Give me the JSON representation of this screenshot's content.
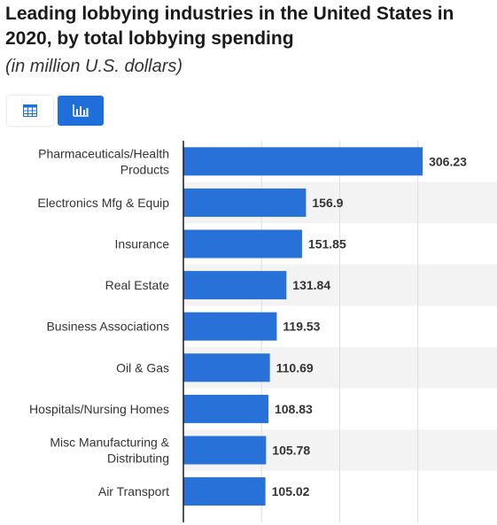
{
  "header": {
    "title": "Leading lobbying industries in the United States in 2020, by total lobbying spending",
    "subtitle": "(in million U.S. dollars)"
  },
  "view_toggle": {
    "table_icon": "table-icon",
    "chart_icon": "bar-chart-icon",
    "active": "chart"
  },
  "colors": {
    "bar": "#2871d9",
    "accent": "#1e6fd9",
    "band": "#f3f3f3"
  },
  "chart_data": {
    "type": "bar",
    "orientation": "horizontal",
    "title": "Leading lobbying industries in the United States in 2020, by total lobbying spending",
    "subtitle": "(in million U.S. dollars)",
    "categories": [
      "Pharmaceuticals/Health Products",
      "Electronics Mfg & Equip",
      "Insurance",
      "Real Estate",
      "Business Associations",
      "Oil & Gas",
      "Hospitals/Nursing Homes",
      "Misc Manufacturing & Distributing",
      "Air Transport"
    ],
    "values": [
      306.23,
      156.9,
      151.85,
      131.84,
      119.53,
      110.69,
      108.83,
      105.78,
      105.02
    ],
    "value_labels": [
      "306.23",
      "156.9",
      "151.85",
      "131.84",
      "119.53",
      "110.69",
      "108.83",
      "105.78",
      "105.02"
    ],
    "xlim": [
      0,
      350
    ],
    "grid": true,
    "legend": "none"
  }
}
